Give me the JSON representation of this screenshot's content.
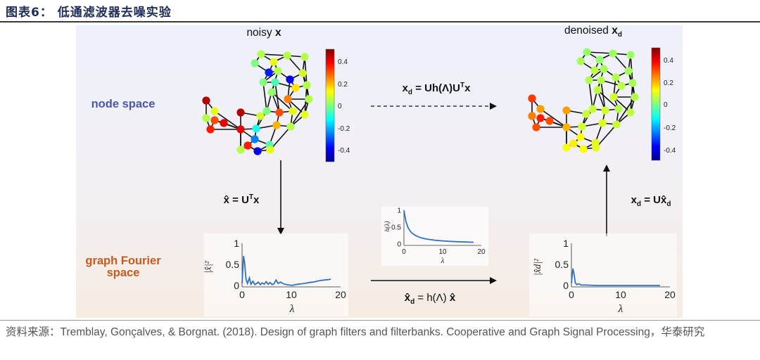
{
  "figure": {
    "title": "图表6：  低通滤波器去噪实验",
    "source_prefix": "资料来源：",
    "source_text": "Tremblay, Gonçalves, & Borgnat. (2018). Design of graph filters and filterbanks. Cooperative and Graph Signal Processing，",
    "source_suffix": "华泰研究"
  },
  "labels": {
    "node_space": "node space",
    "fourier_space_line1": "graph Fourier",
    "fourier_space_line2": "space",
    "noisy_prefix": "noisy ",
    "noisy_var": "x",
    "denoised_prefix": "denoised ",
    "denoised_var": "x",
    "denoised_sub": "d"
  },
  "equations": {
    "top": {
      "lhs": "x",
      "lhs_sub": "d",
      "rhs": " = Uh(Λ)U",
      "sup": "T",
      "tail": "x"
    },
    "left": {
      "lhs": "x̂",
      "rhs": " = U",
      "sup": "T",
      "tail": "x"
    },
    "right": {
      "lhs": "x",
      "lhs_sub": "d",
      "rhs": " = Ux̂",
      "sub": "d"
    },
    "bottom": {
      "lhs": "x̂",
      "lhs_sub": "d",
      "rhs": " = h(Λ) ",
      "tail": "x̂"
    }
  },
  "colorbars": {
    "left": {
      "ticks": [
        "0.4",
        "0.2",
        "0",
        "-0.2",
        "-0.4"
      ]
    },
    "right": {
      "ticks": [
        "0.4",
        "0.2",
        "0",
        "-0.2",
        "-0.4"
      ]
    }
  },
  "chart_data": [
    {
      "type": "line",
      "name": "noisy-spectrum",
      "ylabel": "|x̂|²",
      "xlabel": "λ",
      "xlim": [
        0,
        20
      ],
      "ylim": [
        0,
        1
      ],
      "xticks": [
        "0",
        "10",
        "20"
      ],
      "yticks": [
        "0",
        "0.5",
        "1"
      ],
      "x": [
        0,
        0.3,
        0.5,
        0.8,
        1.1,
        1.5,
        1.8,
        2.2,
        2.6,
        3.0,
        3.3,
        3.7,
        4.1,
        4.5,
        4.9,
        5.3,
        5.7,
        6.1,
        6.5,
        6.9,
        7.3,
        7.8,
        8.4,
        9.0,
        9.6,
        10.2,
        10.8,
        11.4,
        12.0,
        12.8,
        13.6,
        14.4,
        15.2,
        16.0,
        16.8,
        17.6,
        18.0
      ],
      "y": [
        0.05,
        0.7,
        0.55,
        0.15,
        0.05,
        0.18,
        0.03,
        0.1,
        0.02,
        0.05,
        0.08,
        0.02,
        0.06,
        0.03,
        0.09,
        0.03,
        0.07,
        0.02,
        0.04,
        0.13,
        0.05,
        0.08,
        0.04,
        0.02,
        0.01,
        0.0,
        0.02,
        0.03,
        0.04,
        0.05,
        0.07,
        0.08,
        0.1,
        0.12,
        0.13,
        0.14,
        0.15
      ]
    },
    {
      "type": "line",
      "name": "filter-response",
      "ylabel": "h(λ)",
      "xlabel": "λ",
      "xlim": [
        0,
        20
      ],
      "ylim": [
        0,
        1
      ],
      "xticks": [
        "0",
        "10",
        "20"
      ],
      "yticks": [
        "0",
        "0.5",
        "1"
      ],
      "x": [
        0,
        0.5,
        1,
        1.5,
        2,
        3,
        4,
        5,
        6,
        8,
        10,
        12,
        14,
        16,
        18
      ],
      "y": [
        1.0,
        0.67,
        0.5,
        0.4,
        0.33,
        0.25,
        0.2,
        0.167,
        0.143,
        0.111,
        0.091,
        0.077,
        0.067,
        0.059,
        0.053
      ]
    },
    {
      "type": "line",
      "name": "denoised-spectrum",
      "ylabel": "|x̂d|²",
      "xlabel": "λ",
      "xlim": [
        0,
        20
      ],
      "ylim": [
        0,
        1
      ],
      "xticks": [
        "0",
        "10",
        "20"
      ],
      "yticks": [
        "0",
        "0.5",
        "1"
      ],
      "x": [
        0,
        0.3,
        0.5,
        0.8,
        1.1,
        1.5,
        2.0,
        3.0,
        5.0,
        8.0,
        10.0,
        14.0,
        18.0
      ],
      "y": [
        0.05,
        0.4,
        0.3,
        0.06,
        0.02,
        0.04,
        0.01,
        0.01,
        0.0,
        0.0,
        0.0,
        0.0,
        0.0
      ]
    }
  ]
}
